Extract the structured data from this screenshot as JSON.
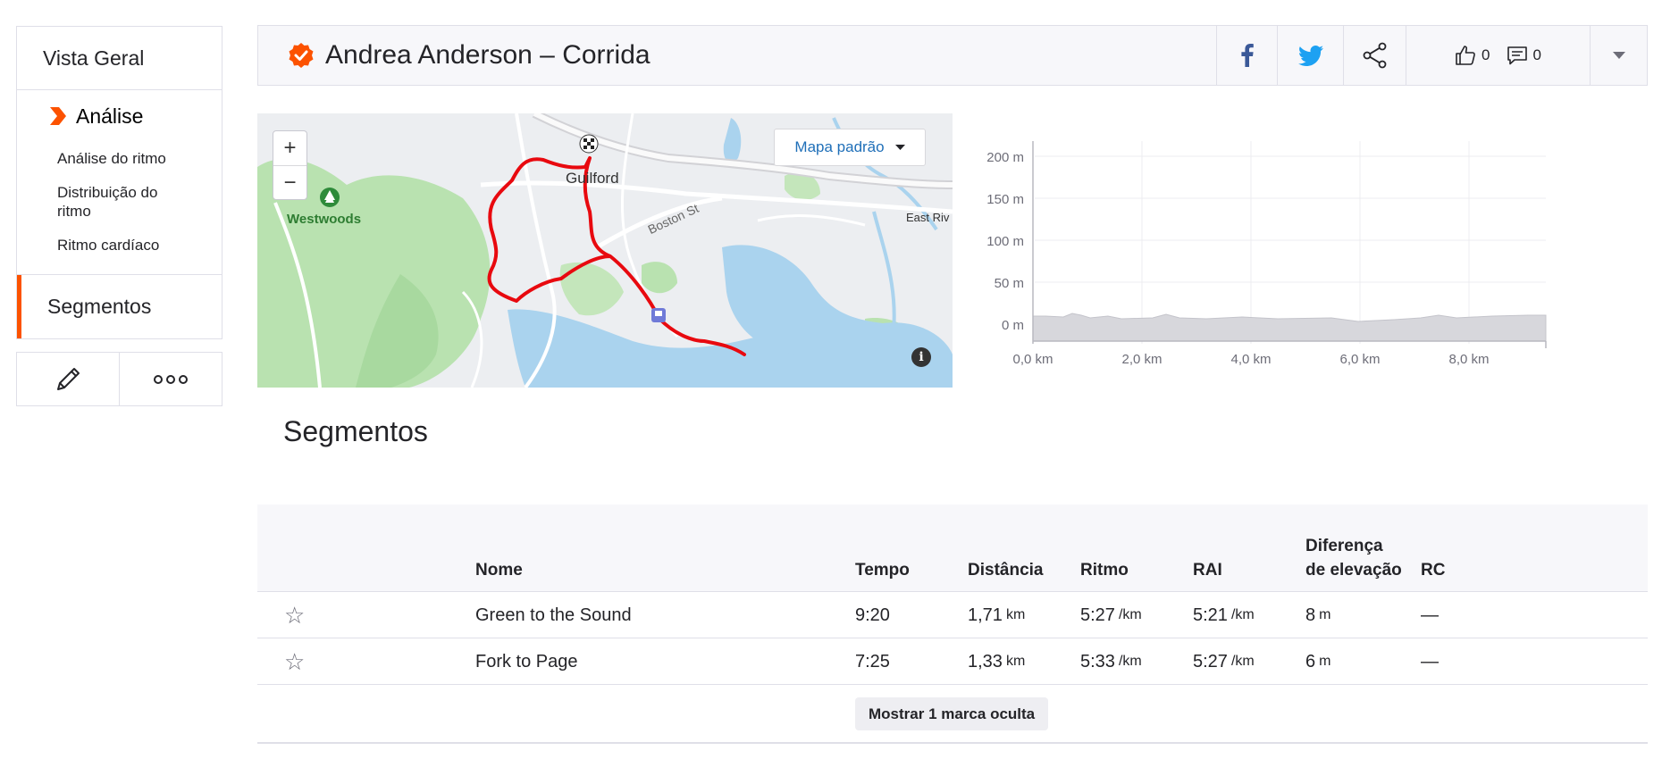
{
  "sidebar": {
    "overview": "Vista Geral",
    "analysis": "Análise",
    "analysis_items": [
      "Análise do ritmo",
      "Distribuição do ritmo",
      "Ritmo cardíaco"
    ],
    "segments": "Segmentos"
  },
  "header": {
    "title": "Andrea Anderson – Corrida",
    "kudos_count": "0",
    "comments_count": "0"
  },
  "map": {
    "zoom_in": "+",
    "zoom_out": "−",
    "map_type": "Mapa padrão",
    "labels": [
      "Westwoods",
      "Guilford",
      "Boston St",
      "East Riv"
    ],
    "info": "i"
  },
  "elevation_chart": {
    "y_ticks": [
      "200 m",
      "150 m",
      "100 m",
      "50 m",
      "0 m"
    ],
    "x_ticks": [
      "0,0 km",
      "2,0 km",
      "4,0 km",
      "6,0 km",
      "8,0 km"
    ]
  },
  "segments_section": {
    "title": "Segmentos",
    "columns": {
      "name": "Nome",
      "time": "Tempo",
      "distance": "Distância",
      "pace": "Ritmo",
      "gap": "RAI",
      "elev_diff": "Diferença de elevação",
      "hr": "RC"
    },
    "rows": [
      {
        "name": "Green to the Sound",
        "time": "9:20",
        "distance": "1,71",
        "distance_unit": "km",
        "pace": "5:27",
        "pace_unit": "/km",
        "gap": "5:21",
        "gap_unit": "/km",
        "elev": "8",
        "elev_unit": "m",
        "hr": "—"
      },
      {
        "name": "Fork to Page",
        "time": "7:25",
        "distance": "1,33",
        "distance_unit": "km",
        "pace": "5:33",
        "pace_unit": "/km",
        "gap": "5:27",
        "gap_unit": "/km",
        "elev": "6",
        "elev_unit": "m",
        "hr": "—"
      }
    ],
    "show_hidden": "Mostrar 1 marca oculta"
  },
  "colors": {
    "brand": "#fc5200",
    "route": "#e8090f",
    "facebook": "#3b5998",
    "twitter": "#1da1f2"
  }
}
